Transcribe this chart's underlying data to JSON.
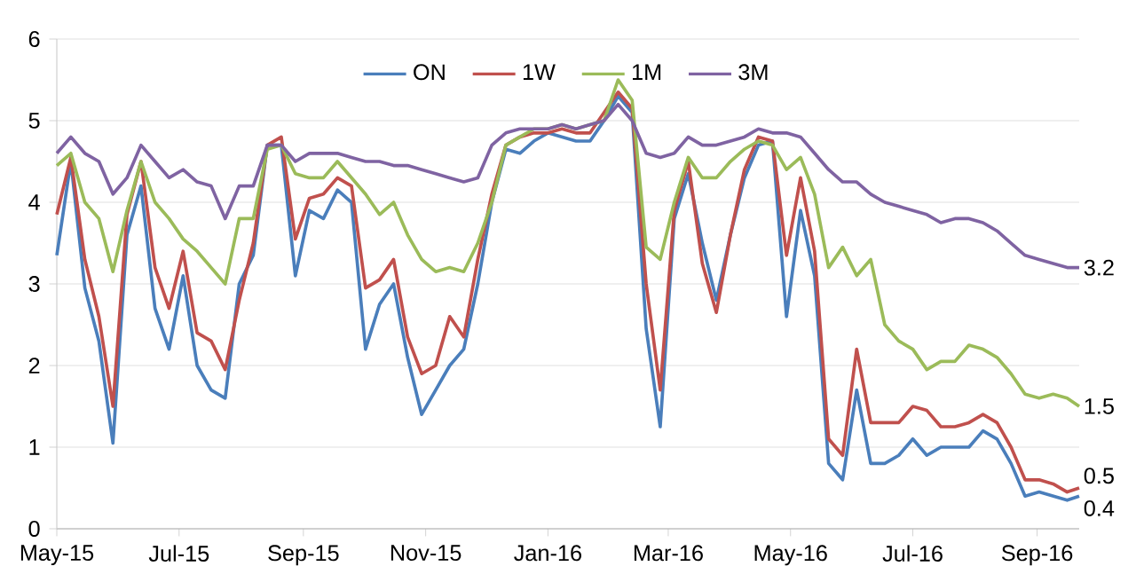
{
  "chart_data": {
    "type": "line",
    "x": [
      "2015-05-01",
      "2015-05-08",
      "2015-05-15",
      "2015-05-22",
      "2015-05-29",
      "2015-06-05",
      "2015-06-12",
      "2015-06-19",
      "2015-06-26",
      "2015-07-03",
      "2015-07-10",
      "2015-07-17",
      "2015-07-24",
      "2015-07-31",
      "2015-08-07",
      "2015-08-14",
      "2015-08-21",
      "2015-08-28",
      "2015-09-04",
      "2015-09-11",
      "2015-09-18",
      "2015-09-25",
      "2015-10-02",
      "2015-10-09",
      "2015-10-16",
      "2015-10-23",
      "2015-10-30",
      "2015-11-06",
      "2015-11-13",
      "2015-11-20",
      "2015-11-27",
      "2015-12-04",
      "2015-12-11",
      "2015-12-18",
      "2015-12-25",
      "2016-01-01",
      "2016-01-08",
      "2016-01-15",
      "2016-01-22",
      "2016-01-29",
      "2016-02-05",
      "2016-02-12",
      "2016-02-19",
      "2016-02-26",
      "2016-03-04",
      "2016-03-11",
      "2016-03-18",
      "2016-03-25",
      "2016-04-01",
      "2016-04-08",
      "2016-04-15",
      "2016-04-22",
      "2016-04-29",
      "2016-05-06",
      "2016-05-13",
      "2016-05-20",
      "2016-05-27",
      "2016-06-03",
      "2016-06-10",
      "2016-06-17",
      "2016-06-24",
      "2016-07-01",
      "2016-07-08",
      "2016-07-15",
      "2016-07-22",
      "2016-07-29",
      "2016-08-05",
      "2016-08-12",
      "2016-08-19",
      "2016-08-26",
      "2016-09-02",
      "2016-09-09",
      "2016-09-16",
      "2016-09-22"
    ],
    "series": [
      {
        "name": "ON",
        "color": "#4a7ebb",
        "values": [
          3.35,
          4.5,
          2.95,
          2.3,
          1.05,
          3.6,
          4.2,
          2.7,
          2.2,
          3.1,
          2.0,
          1.7,
          1.6,
          3.0,
          3.35,
          4.7,
          4.7,
          3.1,
          3.9,
          3.8,
          4.15,
          4.0,
          2.2,
          2.75,
          3.0,
          2.1,
          1.4,
          1.7,
          2.0,
          2.2,
          3.0,
          4.0,
          4.65,
          4.6,
          4.75,
          4.85,
          4.8,
          4.75,
          4.75,
          5.0,
          5.3,
          5.1,
          2.45,
          1.25,
          3.8,
          4.35,
          3.5,
          2.8,
          3.6,
          4.3,
          4.7,
          4.75,
          2.6,
          3.9,
          3.1,
          0.8,
          0.6,
          1.7,
          0.8,
          0.8,
          0.9,
          1.1,
          0.9,
          1.0,
          1.0,
          1.0,
          1.2,
          1.1,
          0.8,
          0.4,
          0.45,
          0.4,
          0.35,
          0.4
        ]
      },
      {
        "name": "1W",
        "color": "#c0504d",
        "values": [
          3.85,
          4.55,
          3.3,
          2.6,
          1.5,
          3.85,
          4.5,
          3.2,
          2.7,
          3.4,
          2.4,
          2.3,
          1.95,
          2.8,
          3.5,
          4.7,
          4.8,
          3.55,
          4.05,
          4.1,
          4.3,
          4.2,
          2.95,
          3.05,
          3.3,
          2.35,
          1.9,
          2.0,
          2.6,
          2.35,
          3.3,
          4.1,
          4.7,
          4.8,
          4.85,
          4.85,
          4.9,
          4.85,
          4.85,
          5.1,
          5.35,
          5.15,
          3.0,
          1.7,
          3.9,
          4.5,
          3.25,
          2.65,
          3.6,
          4.4,
          4.8,
          4.75,
          3.35,
          4.3,
          3.4,
          1.1,
          0.9,
          2.2,
          1.3,
          1.3,
          1.3,
          1.5,
          1.45,
          1.25,
          1.25,
          1.3,
          1.4,
          1.3,
          1.0,
          0.6,
          0.6,
          0.55,
          0.45,
          0.5
        ]
      },
      {
        "name": "1M",
        "color": "#9bbb59",
        "values": [
          4.45,
          4.6,
          4.0,
          3.8,
          3.15,
          3.9,
          4.5,
          4.0,
          3.8,
          3.55,
          3.4,
          3.2,
          3.0,
          3.8,
          3.8,
          4.65,
          4.7,
          4.35,
          4.3,
          4.3,
          4.5,
          4.3,
          4.1,
          3.85,
          4.0,
          3.6,
          3.3,
          3.15,
          3.2,
          3.15,
          3.5,
          4.0,
          4.7,
          4.8,
          4.9,
          4.9,
          4.95,
          4.9,
          4.95,
          5.0,
          5.5,
          5.25,
          3.45,
          3.3,
          4.0,
          4.55,
          4.3,
          4.3,
          4.5,
          4.65,
          4.75,
          4.7,
          4.4,
          4.55,
          4.1,
          3.2,
          3.45,
          3.1,
          3.3,
          2.5,
          2.3,
          2.2,
          1.95,
          2.05,
          2.05,
          2.25,
          2.2,
          2.1,
          1.9,
          1.65,
          1.6,
          1.65,
          1.6,
          1.5
        ]
      },
      {
        "name": "3M",
        "color": "#7f63a2",
        "values": [
          4.6,
          4.8,
          4.6,
          4.5,
          4.1,
          4.3,
          4.7,
          4.5,
          4.3,
          4.4,
          4.25,
          4.2,
          3.8,
          4.2,
          4.2,
          4.7,
          4.7,
          4.5,
          4.6,
          4.6,
          4.6,
          4.55,
          4.5,
          4.5,
          4.45,
          4.45,
          4.4,
          4.35,
          4.3,
          4.25,
          4.3,
          4.7,
          4.85,
          4.9,
          4.9,
          4.9,
          4.95,
          4.9,
          4.95,
          5.0,
          5.2,
          5.0,
          4.6,
          4.55,
          4.6,
          4.8,
          4.7,
          4.7,
          4.75,
          4.8,
          4.9,
          4.85,
          4.85,
          4.8,
          4.6,
          4.4,
          4.25,
          4.25,
          4.1,
          4.0,
          3.95,
          3.9,
          3.85,
          3.75,
          3.8,
          3.8,
          3.75,
          3.65,
          3.5,
          3.35,
          3.3,
          3.25,
          3.2,
          3.2
        ]
      }
    ],
    "xlim": [
      "2015-05-01",
      "2016-09-22"
    ],
    "xticks": [
      {
        "value": "2015-05-01",
        "label": "May-15"
      },
      {
        "value": "2015-07-01",
        "label": "Jul-15"
      },
      {
        "value": "2015-09-01",
        "label": "Sep-15"
      },
      {
        "value": "2015-11-01",
        "label": "Nov-15"
      },
      {
        "value": "2016-01-01",
        "label": "Jan-16"
      },
      {
        "value": "2016-03-01",
        "label": "Mar-16"
      },
      {
        "value": "2016-05-01",
        "label": "May-16"
      },
      {
        "value": "2016-07-01",
        "label": "Jul-16"
      },
      {
        "value": "2016-09-01",
        "label": "Sep-16"
      }
    ],
    "ylim": [
      0,
      6
    ],
    "yticks": [
      0,
      1,
      2,
      3,
      4,
      5,
      6
    ],
    "annotations": [
      {
        "text": "3.2",
        "x": "2016-09-22",
        "y": 3.2
      },
      {
        "text": "1.5",
        "x": "2016-09-22",
        "y": 1.5
      },
      {
        "text": "0.5",
        "x": "2016-09-22",
        "y": 0.5
      },
      {
        "text": "0.4",
        "x": "2016-09-22",
        "y": 0.4
      }
    ],
    "grid": "y",
    "legend": "top",
    "marker": "none",
    "line_style": "solid"
  }
}
